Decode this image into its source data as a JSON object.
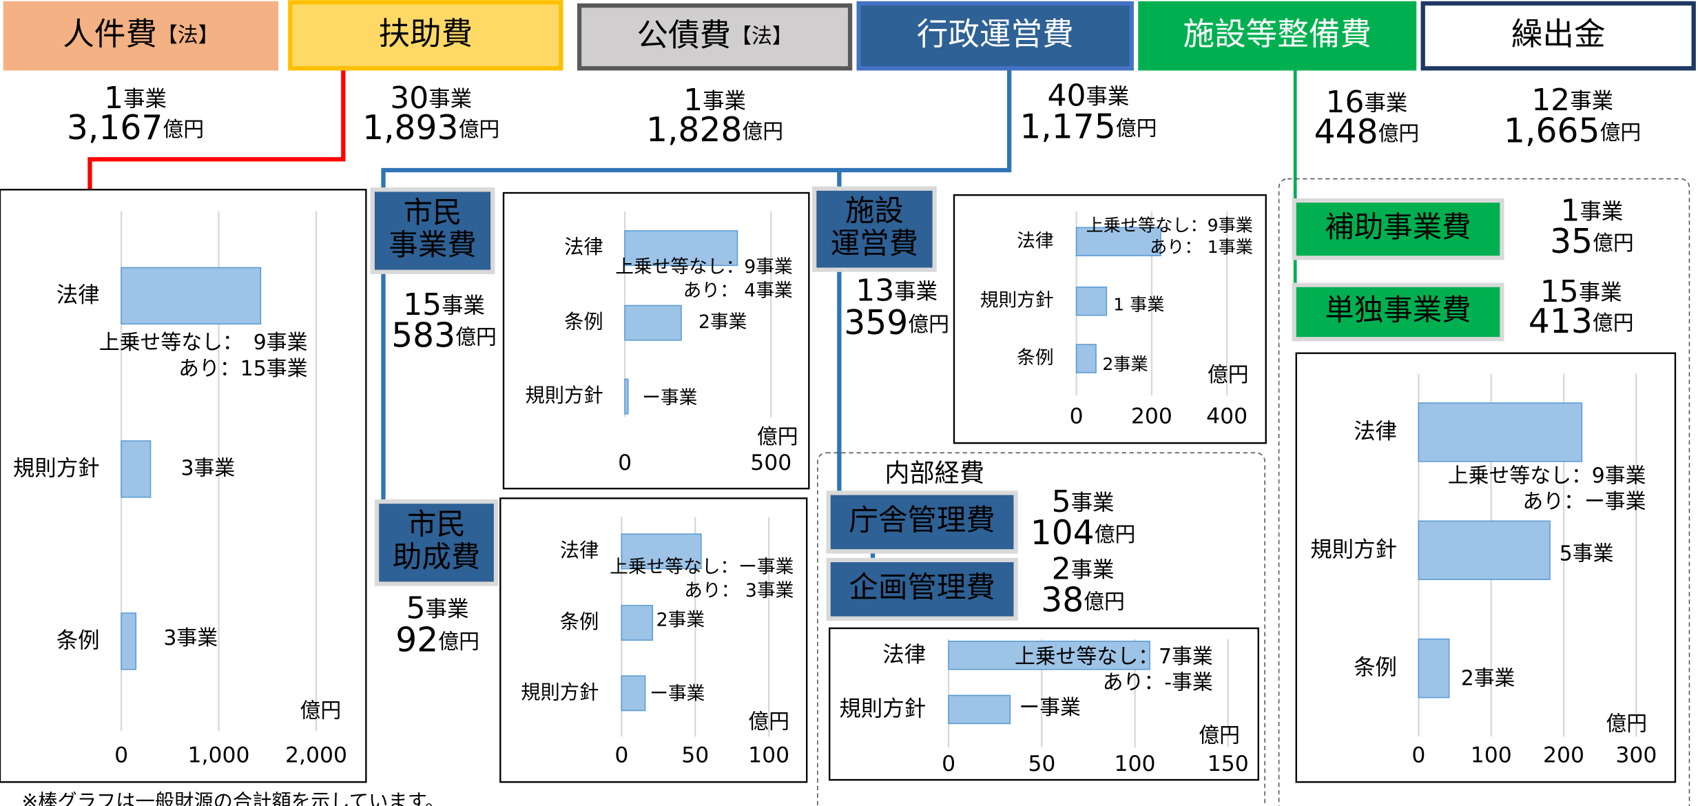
{
  "headers": [
    {
      "label": "人件費",
      "tag": "【法】",
      "count": "1",
      "count_unit": "事業",
      "amount": "3,167",
      "amount_unit": "億円",
      "color": "#f4b183",
      "border": "#f4b183",
      "text_color": "#000000"
    },
    {
      "label": "扶助費",
      "count": "30",
      "count_unit": "事業",
      "amount": "1,893",
      "amount_unit": "億円",
      "color": "#ffd966",
      "border": "#ffc000",
      "text_color": "#000000"
    },
    {
      "label": "公債費",
      "tag": "【法】",
      "count": "1",
      "count_unit": "事業",
      "amount": "1,828",
      "amount_unit": "億円",
      "color": "#d0cece",
      "border": "#595959",
      "text_color": "#000000"
    },
    {
      "label": "行政運営費",
      "count": "40",
      "count_unit": "事業",
      "amount": "1,175",
      "amount_unit": "億円",
      "color": "#2e6195",
      "border": "#4472c4",
      "text_color": "#ffffff"
    },
    {
      "label": "施設等整備費",
      "count": "16",
      "count_unit": "事業",
      "amount": "448",
      "amount_unit": "億円",
      "color": "#00b050",
      "border": "#00b050",
      "text_color": "#ffffff"
    },
    {
      "label": "繰出金",
      "count": "12",
      "count_unit": "事業",
      "amount": "1,665",
      "amount_unit": "億円",
      "color": "#ffffff",
      "border": "#1f3864",
      "text_color": "#000000"
    }
  ],
  "subgroups": [
    {
      "label": [
        "市民",
        "事業費"
      ],
      "count": "15",
      "count_unit": "事業",
      "amount": "583",
      "amount_unit": "億円",
      "color": "#2e6195"
    },
    {
      "label": [
        "市民",
        "助成費"
      ],
      "count": "5",
      "count_unit": "事業",
      "amount": "92",
      "amount_unit": "億円",
      "color": "#2e6195"
    },
    {
      "label": [
        "施設",
        "運営費"
      ],
      "count": "13",
      "count_unit": "事業",
      "amount": "359",
      "amount_unit": "億円",
      "color": "#2e6195"
    },
    {
      "label": [
        "庁舎管理費"
      ],
      "count": "5",
      "count_unit": "事業",
      "amount": "104",
      "amount_unit": "億円",
      "color": "#2e6195"
    },
    {
      "label": [
        "企画管理費"
      ],
      "count": "2",
      "count_unit": "事業",
      "amount": "38",
      "amount_unit": "億円",
      "color": "#2e6195"
    },
    {
      "label": [
        "補助事業費"
      ],
      "count": "1",
      "count_unit": "事業",
      "amount": "35",
      "amount_unit": "億円",
      "color": "#00b050"
    },
    {
      "label": [
        "単独事業費"
      ],
      "count": "15",
      "count_unit": "事業",
      "amount": "413",
      "amount_unit": "億円",
      "color": "#00b050"
    }
  ],
  "internal_label": "内部経費",
  "footnote": "※棒グラフは一般財源の合計額を示しています。",
  "chart_data": [
    {
      "type": "bar",
      "orientation": "horizontal",
      "categories": [
        "法律",
        "規則方針",
        "条例"
      ],
      "values": [
        1430,
        300,
        150
      ],
      "annotations": [
        [
          "上乗せ等なし：　9事業",
          "あり：15事業"
        ],
        [
          "3事業"
        ],
        [
          "3事業"
        ]
      ],
      "xlim": [
        0,
        2000
      ],
      "xticks": [
        0,
        {
          "value": 1000,
          "label": "1,000"
        },
        {
          "value": 2000,
          "label": "2,000"
        }
      ],
      "unit_label": "億円",
      "color": "#9dc3e6",
      "grid": true
    },
    {
      "type": "bar",
      "orientation": "horizontal",
      "categories": [
        "法律",
        "条例",
        "規則方針"
      ],
      "values": [
        385,
        193,
        11
      ],
      "annotations": [
        [
          "上乗せ等なし：9事業",
          "あり： 4事業"
        ],
        [
          "2事業"
        ],
        [
          "ー事業"
        ]
      ],
      "xlim": [
        0,
        500
      ],
      "xticks": [
        0,
        500
      ],
      "unit_label": "億円",
      "color": "#9dc3e6",
      "grid": true
    },
    {
      "type": "bar",
      "orientation": "horizontal",
      "categories": [
        "法律",
        "条例",
        "規則方針"
      ],
      "values": [
        54,
        21,
        16
      ],
      "annotations": [
        [
          "上乗せ等なし：ー事業",
          "あり： 3事業"
        ],
        [
          "2事業"
        ],
        [
          "ー事業"
        ]
      ],
      "xlim": [
        0,
        100
      ],
      "xticks": [
        0,
        50,
        100
      ],
      "unit_label": "億円",
      "color": "#9dc3e6",
      "grid": true
    },
    {
      "type": "bar",
      "orientation": "horizontal",
      "categories": [
        "法律",
        "規則方針",
        "条例"
      ],
      "values": [
        224,
        80,
        52
      ],
      "annotations": [
        [
          "上乗せ等なし：9事業",
          "あり： 1事業"
        ],
        [
          "1 事業"
        ],
        [
          "2事業"
        ]
      ],
      "xlim": [
        0,
        400
      ],
      "xticks": [
        0,
        200,
        400
      ],
      "unit_label": "億円",
      "color": "#9dc3e6",
      "grid": true
    },
    {
      "type": "bar",
      "orientation": "horizontal",
      "categories": [
        "法律",
        "規則方針"
      ],
      "values": [
        108,
        33
      ],
      "annotations": [
        [
          "上乗せ等なし：7事業",
          "あり：-事業"
        ],
        [
          "ー事業"
        ]
      ],
      "xlim": [
        0,
        150
      ],
      "xticks": [
        0,
        50,
        100,
        150
      ],
      "unit_label": "億円",
      "color": "#9dc3e6",
      "grid": true
    },
    {
      "type": "bar",
      "orientation": "horizontal",
      "categories": [
        "法律",
        "規則方針",
        "条例"
      ],
      "values": [
        225,
        181,
        42
      ],
      "annotations": [
        [
          "上乗せ等なし：9事業",
          "あり：ー事業"
        ],
        [
          "5事業"
        ],
        [
          "2事業"
        ]
      ],
      "xlim": [
        0,
        300
      ],
      "xticks": [
        0,
        100,
        200,
        300
      ],
      "unit_label": "億円",
      "color": "#9dc3e6",
      "grid": true
    }
  ]
}
